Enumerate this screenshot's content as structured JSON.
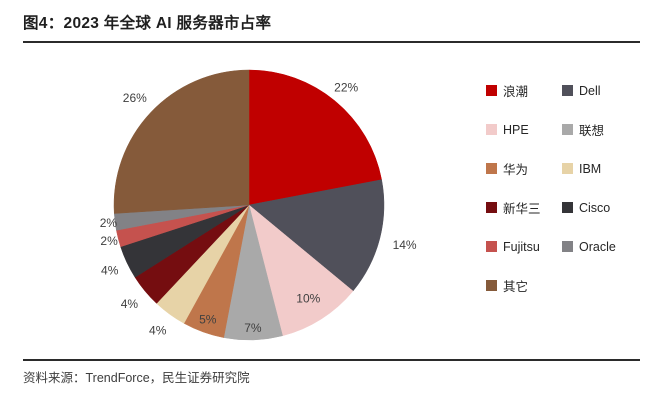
{
  "figure": {
    "title": "图4：2023 年全球 AI 服务器市占率",
    "source": "资料来源：TrendForce，民生证券研究院"
  },
  "chart_data": {
    "type": "pie",
    "title": "2023 年全球 AI 服务器市占率",
    "unit": "%",
    "direction": "clockwise",
    "start_angle_deg": 0,
    "legend_position": "right",
    "label_color": "#404040",
    "series": [
      {
        "name": "浪潮",
        "value": 22,
        "label": "22%",
        "color": "#C00000"
      },
      {
        "name": "Dell",
        "value": 14,
        "label": "14%",
        "color": "#50505A"
      },
      {
        "name": "HPE",
        "value": 10,
        "label": "10%",
        "color": "#F2CBCA"
      },
      {
        "name": "联想",
        "value": 7,
        "label": "7%",
        "color": "#A9A9A9"
      },
      {
        "name": "华为",
        "value": 5,
        "label": "5%",
        "color": "#BF764B"
      },
      {
        "name": "IBM",
        "value": 4,
        "label": "4%",
        "color": "#E7D3A7"
      },
      {
        "name": "新华三",
        "value": 4,
        "label": "4%",
        "color": "#750D10"
      },
      {
        "name": "Cisco",
        "value": 4,
        "label": "4%",
        "color": "#343438"
      },
      {
        "name": "Fujitsu",
        "value": 2,
        "label": "2%",
        "color": "#C5524E"
      },
      {
        "name": "Oracle",
        "value": 2,
        "label": "2%",
        "color": "#828286"
      },
      {
        "name": "其它",
        "value": 26,
        "label": "26%",
        "color": "#855A3A"
      }
    ],
    "label_radii": [
      1.13,
      1.19,
      0.82,
      0.91,
      0.9,
      1.15,
      1.15,
      1.14,
      1.07,
      1.05,
      1.16
    ]
  }
}
